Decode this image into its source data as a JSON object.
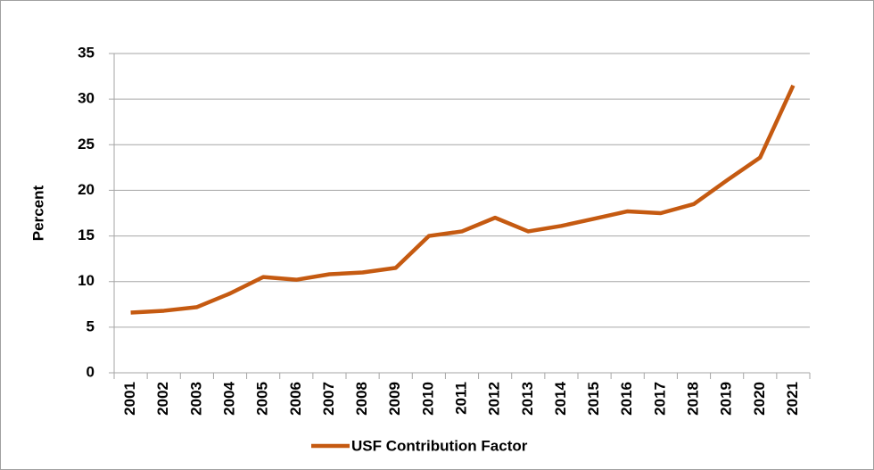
{
  "chart_data": {
    "type": "line",
    "categories": [
      "2001",
      "2002",
      "2003",
      "2004",
      "2005",
      "2006",
      "2007",
      "2008",
      "2009",
      "2010",
      "2011",
      "2012",
      "2013",
      "2014",
      "2015",
      "2016",
      "2017",
      "2018",
      "2019",
      "2020",
      "2021"
    ],
    "series": [
      {
        "name": "USF Contribution Factor",
        "color": "#c55a11",
        "values": [
          6.6,
          6.8,
          7.2,
          8.7,
          10.5,
          10.2,
          10.8,
          11.0,
          11.5,
          15.0,
          15.5,
          17.0,
          15.5,
          16.1,
          16.9,
          17.7,
          17.5,
          18.5,
          21.1,
          23.6,
          31.5
        ]
      }
    ],
    "y_label": "Percent",
    "ylim": [
      0,
      35
    ],
    "yticks": [
      0,
      5,
      10,
      15,
      20,
      25,
      30,
      35
    ],
    "grid": true,
    "legend": "bottom"
  }
}
